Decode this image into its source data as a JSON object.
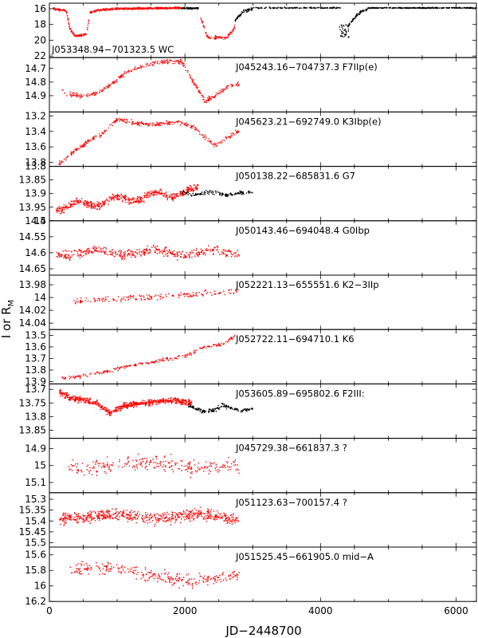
{
  "chart_data": {
    "type": "scatter",
    "xlabel": "JD−2448700",
    "ylabel_main": "I or R",
    "ylabel_sub": "M",
    "xlim": [
      0,
      6300
    ],
    "x_ticks": [
      0,
      2000,
      4000,
      6000
    ],
    "colors": {
      "series_red": "#ff0000",
      "series_black": "#000000",
      "axis": "#000000"
    },
    "panels": [
      {
        "label": "J053348.94−701323.5 WC",
        "ylim": [
          15.3,
          22.2
        ],
        "y_ticks": [
          "16",
          "18",
          "20",
          "22"
        ],
        "y_tick_values": [
          16,
          18,
          20,
          22
        ],
        "label_pos": "bottom-left"
      },
      {
        "label": "J045243.16−704737.3 F7IIp(e)",
        "ylim": [
          14.62,
          15.02
        ],
        "y_ticks": [
          "14.7",
          "14.8",
          "14.9"
        ],
        "y_tick_values": [
          14.7,
          14.8,
          14.9
        ]
      },
      {
        "label": "J045623.21−692749.0 K3Ibp(e)",
        "ylim": [
          13.15,
          13.85
        ],
        "y_ticks": [
          "13.2",
          "13.4",
          "13.6",
          "13.8"
        ],
        "y_tick_values": [
          13.2,
          13.4,
          13.6,
          13.8
        ]
      },
      {
        "label": "J050138.22−685831.6 G7",
        "ylim": [
          13.8,
          14.0
        ],
        "y_ticks": [
          "13.8",
          "13.85",
          "13.9",
          "13.95",
          "14"
        ],
        "y_tick_values": [
          13.8,
          13.85,
          13.9,
          13.95,
          14.0
        ]
      },
      {
        "label": "J050143.46−694048.4 G0Ibp",
        "ylim": [
          14.5,
          14.67
        ],
        "y_ticks": [
          "14.5",
          "14.55",
          "14.6",
          "14.65"
        ],
        "y_tick_values": [
          14.5,
          14.55,
          14.6,
          14.65
        ]
      },
      {
        "label": "J052221.13−655551.6 K2−3IIp",
        "ylim": [
          13.965,
          14.05
        ],
        "y_ticks": [
          "13.98",
          "14",
          "14.02",
          "14.04"
        ],
        "y_tick_values": [
          13.98,
          14.0,
          14.02,
          14.04
        ]
      },
      {
        "label": "J052722.11−694710.1 K6",
        "ylim": [
          13.45,
          13.92
        ],
        "y_ticks": [
          "13.5",
          "13.6",
          "13.7",
          "13.8",
          "13.9"
        ],
        "y_tick_values": [
          13.5,
          13.6,
          13.7,
          13.8,
          13.9
        ]
      },
      {
        "label": "J053605.89−695802.6 F2III:",
        "ylim": [
          13.68,
          13.88
        ],
        "y_ticks": [
          "13.7",
          "13.75",
          "13.8",
          "13.85"
        ],
        "y_tick_values": [
          13.7,
          13.75,
          13.8,
          13.85
        ]
      },
      {
        "label": "J045729.38−661837.3 ?",
        "ylim": [
          14.84,
          15.16
        ],
        "y_ticks": [
          "14.9",
          "15",
          "15.1"
        ],
        "y_tick_values": [
          14.9,
          15.0,
          15.1
        ]
      },
      {
        "label": "J051123.63−700157.4 ?",
        "ylim": [
          15.27,
          15.52
        ],
        "y_ticks": [
          "15.3",
          "15.35",
          "15.4",
          "15.45",
          "15.5"
        ],
        "y_tick_values": [
          15.3,
          15.35,
          15.4,
          15.45,
          15.5
        ]
      },
      {
        "label": "J051525.45−661905.0 mid−A",
        "ylim": [
          15.5,
          16.2
        ],
        "y_ticks": [
          "15.6",
          "15.8",
          "16",
          "16.2"
        ],
        "y_tick_values": [
          15.6,
          15.8,
          16.0,
          16.2
        ]
      }
    ]
  }
}
